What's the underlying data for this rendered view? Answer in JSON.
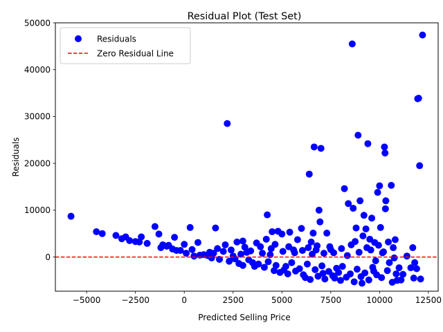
{
  "chart_data": {
    "type": "scatter",
    "title": "Residual Plot (Test Set)",
    "xlabel": "Predicted Selling Price",
    "ylabel": "Residuals",
    "xlim": [
      -6600,
      13000
    ],
    "ylim": [
      -7300,
      50000
    ],
    "grid": false,
    "legend_position": "upper-left",
    "x_ticks": [
      -5000,
      -2500,
      0,
      2500,
      5000,
      7500,
      10000,
      12500
    ],
    "x_tick_labels": [
      "−5000",
      "−2500",
      "0",
      "2500",
      "5000",
      "7500",
      "10000",
      "12500"
    ],
    "y_ticks": [
      0,
      10000,
      20000,
      30000,
      40000,
      50000
    ],
    "y_tick_labels": [
      "0",
      "10000",
      "20000",
      "30000",
      "40000",
      "50000"
    ],
    "series": [
      {
        "name": "Residuals",
        "kind": "scatter",
        "color": "#0000ff",
        "points": [
          [
            -5800,
            8700
          ],
          [
            -4500,
            5400
          ],
          [
            -4200,
            5000
          ],
          [
            -3500,
            4600
          ],
          [
            -3200,
            3900
          ],
          [
            -3000,
            4300
          ],
          [
            -2800,
            3500
          ],
          [
            -2500,
            3300
          ],
          [
            -2300,
            3200
          ],
          [
            -2200,
            4300
          ],
          [
            -1900,
            2900
          ],
          [
            -1500,
            6500
          ],
          [
            -1300,
            4900
          ],
          [
            -1200,
            2000
          ],
          [
            -1100,
            2600
          ],
          [
            -900,
            2300
          ],
          [
            -800,
            2500
          ],
          [
            -600,
            1700
          ],
          [
            -500,
            4200
          ],
          [
            -400,
            1400
          ],
          [
            -200,
            1400
          ],
          [
            0,
            2700
          ],
          [
            100,
            800
          ],
          [
            300,
            6300
          ],
          [
            400,
            1600
          ],
          [
            500,
            200
          ],
          [
            700,
            3100
          ],
          [
            800,
            400
          ],
          [
            1000,
            500
          ],
          [
            1300,
            1000
          ],
          [
            1600,
            6200
          ],
          [
            1700,
            1800
          ],
          [
            2000,
            1200
          ],
          [
            2100,
            2600
          ],
          [
            2200,
            28500
          ],
          [
            2500,
            200
          ],
          [
            2700,
            3200
          ],
          [
            3000,
            3400
          ],
          [
            3200,
            1000
          ],
          [
            3500,
            -1200
          ],
          [
            3700,
            3000
          ],
          [
            4000,
            800
          ],
          [
            4200,
            3800
          ],
          [
            4250,
            9000
          ],
          [
            4400,
            500
          ],
          [
            4500,
            5400
          ],
          [
            4600,
            -2900
          ],
          [
            4800,
            5500
          ],
          [
            5000,
            4900
          ],
          [
            5100,
            -2800
          ],
          [
            5400,
            5300
          ],
          [
            5600,
            1500
          ],
          [
            5800,
            3700
          ],
          [
            6000,
            6100
          ],
          [
            6200,
            -4400
          ],
          [
            6400,
            17700
          ],
          [
            6500,
            3200
          ],
          [
            6600,
            5100
          ],
          [
            6650,
            23500
          ],
          [
            6800,
            2400
          ],
          [
            6900,
            10000
          ],
          [
            6950,
            7500
          ],
          [
            7000,
            23200
          ],
          [
            7100,
            -3500
          ],
          [
            7300,
            5100
          ],
          [
            7500,
            1600
          ],
          [
            7600,
            -4000
          ],
          [
            7800,
            -2400
          ],
          [
            8000,
            -5000
          ],
          [
            8200,
            14600
          ],
          [
            8400,
            11400
          ],
          [
            8600,
            45500
          ],
          [
            8650,
            10400
          ],
          [
            8800,
            6200
          ],
          [
            8900,
            26000
          ],
          [
            9000,
            12000
          ],
          [
            9100,
            -5600
          ],
          [
            9200,
            8900
          ],
          [
            9300,
            6000
          ],
          [
            9400,
            24200
          ],
          [
            9500,
            3800
          ],
          [
            9600,
            8300
          ],
          [
            9700,
            -3000
          ],
          [
            9800,
            -800
          ],
          [
            9900,
            13800
          ],
          [
            10000,
            15200
          ],
          [
            10050,
            6300
          ],
          [
            10200,
            1100
          ],
          [
            10250,
            23500
          ],
          [
            10280,
            22200
          ],
          [
            10300,
            10300
          ],
          [
            10320,
            12000
          ],
          [
            10500,
            -1200
          ],
          [
            10600,
            15300
          ],
          [
            10700,
            2000
          ],
          [
            10800,
            3700
          ],
          [
            10900,
            -5000
          ],
          [
            11000,
            -2300
          ],
          [
            11200,
            -3700
          ],
          [
            11400,
            200
          ],
          [
            11600,
            -2300
          ],
          [
            11700,
            2000
          ],
          [
            11750,
            -4500
          ],
          [
            11800,
            -1200
          ],
          [
            11900,
            -2500
          ],
          [
            11950,
            33800
          ],
          [
            12000,
            33900
          ],
          [
            12050,
            19500
          ],
          [
            12100,
            -4700
          ],
          [
            12200,
            47400
          ],
          [
            1200,
            300
          ],
          [
            1400,
            -200
          ],
          [
            1500,
            800
          ],
          [
            1800,
            -500
          ],
          [
            2300,
            -900
          ],
          [
            2600,
            -400
          ],
          [
            2800,
            -1400
          ],
          [
            3000,
            -1800
          ],
          [
            3300,
            -600
          ],
          [
            3600,
            -2000
          ],
          [
            3800,
            -1500
          ],
          [
            4100,
            -2200
          ],
          [
            4300,
            -1000
          ],
          [
            4700,
            -1800
          ],
          [
            4900,
            -3300
          ],
          [
            5200,
            -2000
          ],
          [
            5300,
            -3600
          ],
          [
            5500,
            -1200
          ],
          [
            5700,
            -3000
          ],
          [
            5900,
            -2500
          ],
          [
            6100,
            -3800
          ],
          [
            6300,
            -1500
          ],
          [
            6450,
            -4800
          ],
          [
            6700,
            -2700
          ],
          [
            6850,
            -4100
          ],
          [
            7050,
            -1900
          ],
          [
            7200,
            -4700
          ],
          [
            7400,
            -3100
          ],
          [
            7700,
            -4500
          ],
          [
            7900,
            -3300
          ],
          [
            8100,
            -2000
          ],
          [
            8300,
            -4300
          ],
          [
            8500,
            -3600
          ],
          [
            8700,
            -5300
          ],
          [
            8850,
            -2600
          ],
          [
            9050,
            -4200
          ],
          [
            9250,
            -3400
          ],
          [
            9450,
            -4900
          ],
          [
            9650,
            -2200
          ],
          [
            9850,
            -3800
          ],
          [
            10100,
            -4400
          ],
          [
            10400,
            -2900
          ],
          [
            10650,
            -5400
          ],
          [
            10850,
            -3600
          ],
          [
            11100,
            -4900
          ],
          [
            2400,
            1500
          ],
          [
            2900,
            600
          ],
          [
            3100,
            2100
          ],
          [
            3400,
            1300
          ],
          [
            3900,
            2200
          ],
          [
            4450,
            1800
          ],
          [
            4650,
            2700
          ],
          [
            5050,
            1200
          ],
          [
            5350,
            2200
          ],
          [
            5650,
            900
          ],
          [
            6050,
            1400
          ],
          [
            6350,
            2000
          ],
          [
            6550,
            600
          ],
          [
            6750,
            1500
          ],
          [
            7150,
            800
          ],
          [
            7450,
            2200
          ],
          [
            7650,
            900
          ],
          [
            8050,
            1800
          ],
          [
            8350,
            300
          ],
          [
            8550,
            2600
          ],
          [
            8750,
            3300
          ],
          [
            8950,
            1000
          ],
          [
            9150,
            4500
          ],
          [
            9350,
            2000
          ],
          [
            9550,
            1500
          ],
          [
            9750,
            3100
          ],
          [
            9950,
            2500
          ],
          [
            10150,
            900
          ],
          [
            10450,
            3200
          ],
          [
            10750,
            -200
          ]
        ]
      },
      {
        "name": "Zero Residual Line",
        "kind": "hline",
        "y": 0,
        "color": "#ff0000",
        "style": "dashed"
      }
    ]
  }
}
